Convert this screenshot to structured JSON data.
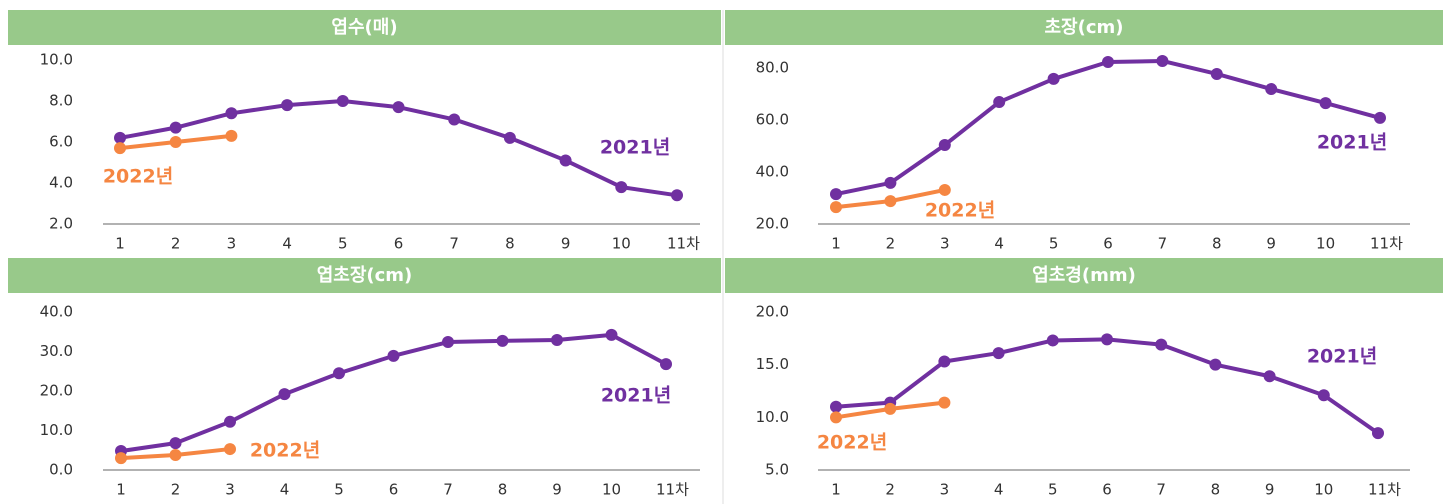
{
  "chart_data": [
    {
      "type": "line",
      "title": "엽수(매)",
      "categories": [
        "1",
        "2",
        "3",
        "4",
        "5",
        "6",
        "7",
        "8",
        "9",
        "10",
        "11차"
      ],
      "ylim": [
        2,
        10
      ],
      "yticks": [
        {
          "value": 2,
          "label": "2.0"
        },
        {
          "value": 4,
          "label": "4.0"
        },
        {
          "value": 6,
          "label": "6.0"
        },
        {
          "value": 8,
          "label": "8.0"
        },
        {
          "value": 10,
          "label": "10.0"
        }
      ],
      "series": [
        {
          "name": "2021년",
          "color": "#7030a0",
          "values": [
            6.2,
            6.7,
            7.4,
            7.8,
            8.0,
            7.7,
            7.1,
            6.2,
            5.1,
            3.8,
            3.4
          ]
        },
        {
          "name": "2022년",
          "color": "#f58642",
          "values": [
            5.7,
            6.0,
            6.3,
            null,
            null,
            null,
            null,
            null,
            null,
            null,
            null
          ]
        }
      ]
    },
    {
      "type": "line",
      "title": "초장(cm)",
      "categories": [
        "1",
        "2",
        "3",
        "4",
        "5",
        "6",
        "7",
        "8",
        "9",
        "10",
        "11차"
      ],
      "ylim": [
        20,
        80
      ],
      "yticks": [
        {
          "value": 20,
          "label": "20.0"
        },
        {
          "value": 40,
          "label": "40.0"
        },
        {
          "value": 60,
          "label": "60.0"
        },
        {
          "value": 80,
          "label": "80.0"
        }
      ],
      "series": [
        {
          "name": "2021년",
          "color": "#7030a0",
          "values": [
            31.5,
            35.8,
            50.4,
            66.9,
            75.8,
            82.3,
            82.7,
            77.7,
            71.9,
            66.5,
            60.8
          ]
        },
        {
          "name": "2022년",
          "color": "#f58642",
          "values": [
            26.5,
            28.8,
            33.1,
            null,
            null,
            null,
            null,
            null,
            null,
            null,
            null
          ]
        }
      ]
    },
    {
      "type": "line",
      "title": "엽초장(cm)",
      "categories": [
        "1",
        "2",
        "3",
        "4",
        "5",
        "6",
        "7",
        "8",
        "9",
        "10",
        "11차"
      ],
      "ylim": [
        0,
        40
      ],
      "yticks": [
        {
          "value": 0,
          "label": "0.0"
        },
        {
          "value": 10,
          "label": "10.0"
        },
        {
          "value": 20,
          "label": "20.0"
        },
        {
          "value": 30,
          "label": "30.0"
        },
        {
          "value": 40,
          "label": "40.0"
        }
      ],
      "series": [
        {
          "name": "2021년",
          "color": "#7030a0",
          "values": [
            4.8,
            6.8,
            12.2,
            19.2,
            24.5,
            28.9,
            32.4,
            32.7,
            32.9,
            34.2,
            26.8
          ]
        },
        {
          "name": "2022년",
          "color": "#f58642",
          "values": [
            3.0,
            3.8,
            5.3,
            null,
            null,
            null,
            null,
            null,
            null,
            null,
            null
          ]
        }
      ]
    },
    {
      "type": "line",
      "title": "엽초경(mm)",
      "categories": [
        "1",
        "2",
        "3",
        "4",
        "5",
        "6",
        "7",
        "8",
        "9",
        "10",
        "11차"
      ],
      "ylim": [
        5,
        20
      ],
      "yticks": [
        {
          "value": 5,
          "label": "5.0"
        },
        {
          "value": 10,
          "label": "10.0"
        },
        {
          "value": 15,
          "label": "15.0"
        },
        {
          "value": 20,
          "label": "20.0"
        }
      ],
      "series": [
        {
          "name": "2021년",
          "color": "#7030a0",
          "values": [
            11.0,
            11.4,
            15.3,
            16.1,
            17.3,
            17.4,
            16.9,
            15.0,
            13.9,
            12.1,
            8.5
          ]
        },
        {
          "name": "2022년",
          "color": "#f58642",
          "values": [
            10.0,
            10.8,
            11.4,
            null,
            null,
            null,
            null,
            null,
            null,
            null,
            null
          ]
        }
      ]
    }
  ]
}
